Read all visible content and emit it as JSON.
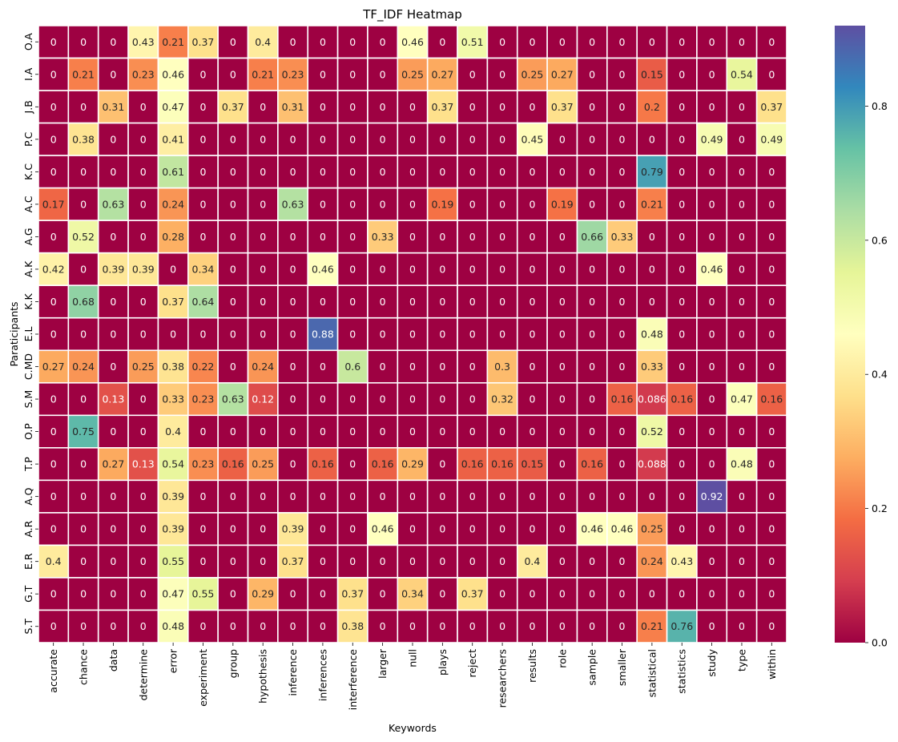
{
  "chart_data": {
    "type": "heatmap",
    "title": "TF_IDF Heatmap",
    "xlabel": "Keywords",
    "ylabel": "Paraticipants",
    "colormap": "Spectral",
    "vmin": 0,
    "vmax": 0.92,
    "colorbar_ticks": [
      "0.0",
      "0.2",
      "0.4",
      "0.6",
      "0.8"
    ],
    "colorbar_tick_values": [
      0,
      0.2,
      0.4,
      0.6,
      0.8
    ],
    "x": [
      "accurate",
      "chance",
      "data",
      "determine",
      "error",
      "experiment",
      "group",
      "hypothesis",
      "inference",
      "inferences",
      "interference",
      "larger",
      "null",
      "plays",
      "reject",
      "researchers",
      "results",
      "role",
      "sample",
      "smaller",
      "statistical",
      "statistics",
      "study",
      "type",
      "within"
    ],
    "y": [
      "O.A",
      "I.A",
      "J.B",
      "P.C",
      "K.C",
      "A.C",
      "A.G",
      "A.K",
      "K.K",
      "E.L",
      "C.MD",
      "S.M",
      "O.P",
      "T.P",
      "A.Q",
      "A.R",
      "E.R",
      "G.T",
      "S.T"
    ],
    "values": [
      [
        0,
        0,
        0,
        0.43,
        0.21,
        0.37,
        0,
        0.4,
        0,
        0,
        0,
        0,
        0.46,
        0,
        0.51,
        0,
        0,
        0,
        0,
        0,
        0,
        0,
        0,
        0,
        0
      ],
      [
        0,
        0.21,
        0,
        0.23,
        0.46,
        0,
        0,
        0.21,
        0.23,
        0,
        0,
        0,
        0.25,
        0.27,
        0,
        0,
        0.25,
        0.27,
        0,
        0,
        0.15,
        0,
        0,
        0.54,
        0
      ],
      [
        0,
        0,
        0.31,
        0,
        0.47,
        0,
        0.37,
        0,
        0.31,
        0,
        0,
        0,
        0,
        0.37,
        0,
        0,
        0,
        0.37,
        0,
        0,
        0.2,
        0,
        0,
        0,
        0.37
      ],
      [
        0,
        0.38,
        0,
        0,
        0.41,
        0,
        0,
        0,
        0,
        0,
        0,
        0,
        0,
        0,
        0,
        0,
        0.45,
        0,
        0,
        0,
        0,
        0,
        0.49,
        0,
        0.49
      ],
      [
        0,
        0,
        0,
        0,
        0.61,
        0,
        0,
        0,
        0,
        0,
        0,
        0,
        0,
        0,
        0,
        0,
        0,
        0,
        0,
        0,
        0.79,
        0,
        0,
        0,
        0
      ],
      [
        0.17,
        0,
        0.63,
        0,
        0.24,
        0,
        0,
        0,
        0.63,
        0,
        0,
        0,
        0,
        0.19,
        0,
        0,
        0,
        0.19,
        0,
        0,
        0.21,
        0,
        0,
        0,
        0
      ],
      [
        0,
        0.52,
        0,
        0,
        0.28,
        0,
        0,
        0,
        0,
        0,
        0,
        0.33,
        0,
        0,
        0,
        0,
        0,
        0,
        0.66,
        0.33,
        0,
        0,
        0,
        0,
        0
      ],
      [
        0.42,
        0,
        0.39,
        0.39,
        0,
        0.34,
        0,
        0,
        0,
        0.46,
        0,
        0,
        0,
        0,
        0,
        0,
        0,
        0,
        0,
        0,
        0,
        0,
        0.46,
        0,
        0
      ],
      [
        0,
        0.68,
        0,
        0,
        0.37,
        0.64,
        0,
        0,
        0,
        0,
        0,
        0,
        0,
        0,
        0,
        0,
        0,
        0,
        0,
        0,
        0,
        0,
        0,
        0,
        0
      ],
      [
        0,
        0,
        0,
        0,
        0,
        0,
        0,
        0,
        0,
        0.88,
        0,
        0,
        0,
        0,
        0,
        0,
        0,
        0,
        0,
        0,
        0.48,
        0,
        0,
        0,
        0
      ],
      [
        0.27,
        0.24,
        0,
        0.25,
        0.38,
        0.22,
        0,
        0.24,
        0,
        0,
        0.6,
        0,
        0,
        0,
        0,
        0.3,
        0,
        0,
        0,
        0,
        0.33,
        0,
        0,
        0,
        0
      ],
      [
        0,
        0,
        0.13,
        0,
        0.33,
        0.23,
        0.63,
        0.12,
        0,
        0,
        0,
        0,
        0,
        0,
        0,
        0.32,
        0,
        0,
        0,
        0.16,
        0.086,
        0.16,
        0,
        0.47,
        0.16
      ],
      [
        0,
        0.75,
        0,
        0,
        0.4,
        0,
        0,
        0,
        0,
        0,
        0,
        0,
        0,
        0,
        0,
        0,
        0,
        0,
        0,
        0,
        0.52,
        0,
        0,
        0,
        0
      ],
      [
        0,
        0,
        0.27,
        0.13,
        0.54,
        0.23,
        0.16,
        0.25,
        0,
        0.16,
        0,
        0.16,
        0.29,
        0,
        0.16,
        0.16,
        0.15,
        0,
        0.16,
        0,
        0.088,
        0,
        0,
        0.48,
        0
      ],
      [
        0,
        0,
        0,
        0,
        0.39,
        0,
        0,
        0,
        0,
        0,
        0,
        0,
        0,
        0,
        0,
        0,
        0,
        0,
        0,
        0,
        0,
        0,
        0.92,
        0,
        0
      ],
      [
        0,
        0,
        0,
        0,
        0.39,
        0,
        0,
        0,
        0.39,
        0,
        0,
        0.46,
        0,
        0,
        0,
        0,
        0,
        0,
        0.46,
        0.46,
        0.25,
        0,
        0,
        0,
        0
      ],
      [
        0.4,
        0,
        0,
        0,
        0.55,
        0,
        0,
        0,
        0.37,
        0,
        0,
        0,
        0,
        0,
        0,
        0,
        0.4,
        0,
        0,
        0,
        0.24,
        0.43,
        0,
        0,
        0
      ],
      [
        0,
        0,
        0,
        0,
        0.47,
        0.55,
        0,
        0.29,
        0,
        0,
        0.37,
        0,
        0.34,
        0,
        0.37,
        0,
        0,
        0,
        0,
        0,
        0,
        0,
        0,
        0,
        0
      ],
      [
        0,
        0,
        0,
        0,
        0.48,
        0,
        0,
        0,
        0,
        0,
        0.38,
        0,
        0,
        0,
        0,
        0,
        0,
        0,
        0,
        0,
        0.21,
        0.76,
        0,
        0,
        0
      ]
    ],
    "grid": true,
    "legend": "colorbar-right"
  }
}
